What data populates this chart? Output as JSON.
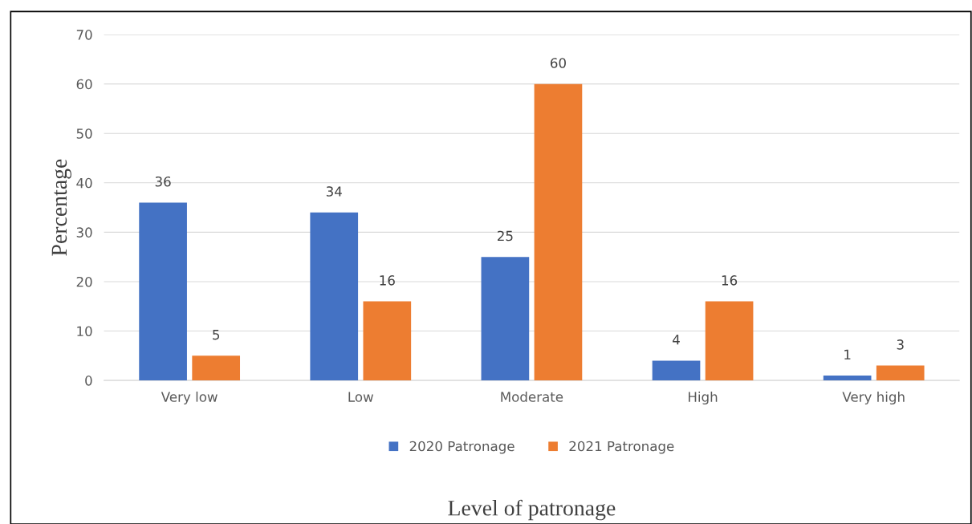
{
  "chart_data": {
    "type": "bar",
    "xlabel": "Level of patronage",
    "ylabel": "Percentage",
    "categories": [
      "Very low",
      "Low",
      "Moderate",
      "High",
      "Very high"
    ],
    "series": [
      {
        "name": "2020 Patronage",
        "color": "#4472c4",
        "values": [
          36,
          34,
          25,
          4,
          1
        ]
      },
      {
        "name": "2021 Patronage",
        "color": "#ed7d31",
        "values": [
          5,
          16,
          60,
          16,
          3
        ]
      }
    ],
    "ylim": [
      0,
      70
    ],
    "yticks": [
      0,
      10,
      20,
      30,
      40,
      50,
      60,
      70
    ],
    "grid": "y",
    "legend": "bottom",
    "data_labels": true
  }
}
